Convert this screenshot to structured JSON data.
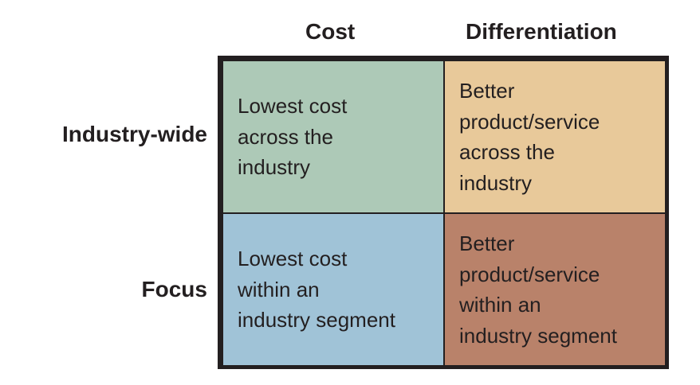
{
  "columns": {
    "cost": "Cost",
    "differentiation": "Differentiation"
  },
  "rows": {
    "industry_wide": "Industry-wide",
    "focus": "Focus"
  },
  "cells": {
    "cost_industry_wide": [
      "Lowest cost",
      "across the",
      "industry"
    ],
    "differentiation_industry_wide": [
      "Better",
      "product/service",
      "across the",
      "industry"
    ],
    "cost_focus": [
      "Lowest cost",
      "within an",
      "industry segment"
    ],
    "differentiation_focus": [
      "Better",
      "product/service",
      "within an",
      "industry segment"
    ]
  },
  "colors": {
    "cost_industry_wide": "#adc9b7",
    "differentiation_industry_wide": "#e8c99a",
    "cost_focus": "#a0c3d7",
    "differentiation_focus": "#b9826a",
    "border": "#231f20"
  }
}
